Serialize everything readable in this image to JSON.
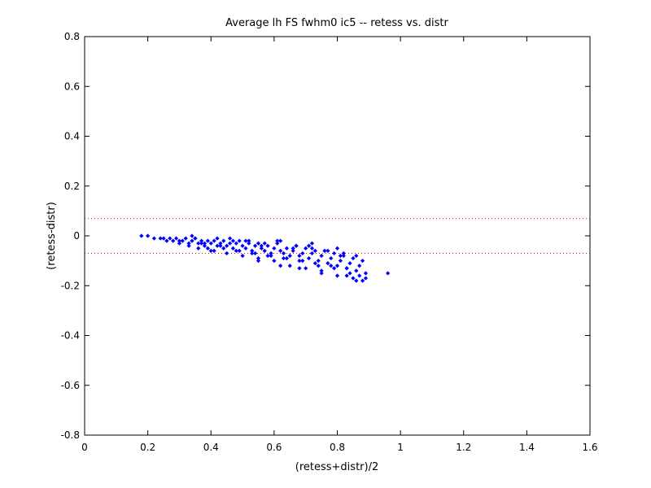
{
  "chart_data": {
    "type": "scatter",
    "title": "Average lh FS fwhm0 ic5 -- retess vs. distr",
    "xlabel": "(retess+distr)/2",
    "ylabel": "(retess-distr)",
    "xlim": [
      0,
      1.6
    ],
    "ylim": [
      -0.8,
      0.8
    ],
    "xticks": [
      "0",
      "0.2",
      "0.4",
      "0.6",
      "0.8",
      "1",
      "1.2",
      "1.4",
      "1.6"
    ],
    "yticks": [
      "0.8",
      "0.6",
      "0.4",
      "0.2",
      "0",
      "-0.2",
      "-0.4",
      "-0.6",
      "-0.8"
    ],
    "xtick_values": [
      0,
      0.2,
      0.4,
      0.6,
      0.8,
      1.0,
      1.2,
      1.4,
      1.6
    ],
    "ytick_values": [
      0.8,
      0.6,
      0.4,
      0.2,
      0,
      -0.2,
      -0.4,
      -0.6,
      -0.8
    ],
    "grid": false,
    "reference_lines": [
      0.07,
      -0.07
    ],
    "colors": {
      "points": "#0000ff",
      "reference_lines": "#ff0000",
      "axes": "#000000"
    },
    "series": [
      {
        "marker": "dot",
        "x": [
          0.18,
          0.2,
          0.22,
          0.24,
          0.25,
          0.26,
          0.27,
          0.28,
          0.29,
          0.3,
          0.31,
          0.32,
          0.33,
          0.34,
          0.35,
          0.36,
          0.37,
          0.38,
          0.39,
          0.4,
          0.41,
          0.42,
          0.43,
          0.44,
          0.45,
          0.46,
          0.47,
          0.48,
          0.49,
          0.5,
          0.51,
          0.52,
          0.53,
          0.54,
          0.55,
          0.56,
          0.57,
          0.58,
          0.59,
          0.6,
          0.61,
          0.62,
          0.63,
          0.64,
          0.65,
          0.66,
          0.67,
          0.68,
          0.69,
          0.7,
          0.71,
          0.72,
          0.73,
          0.74,
          0.75,
          0.76,
          0.77,
          0.78,
          0.79,
          0.8,
          0.81,
          0.82,
          0.83,
          0.84,
          0.85,
          0.86,
          0.87,
          0.88,
          0.89,
          0.96,
          0.3,
          0.33,
          0.35,
          0.36,
          0.38,
          0.4,
          0.42,
          0.44,
          0.45,
          0.47,
          0.48,
          0.5,
          0.52,
          0.53,
          0.55,
          0.57,
          0.58,
          0.6,
          0.62,
          0.63,
          0.65,
          0.67,
          0.68,
          0.7,
          0.72,
          0.73,
          0.75,
          0.77,
          0.78,
          0.8,
          0.82,
          0.83,
          0.85,
          0.86,
          0.88,
          0.34,
          0.37,
          0.39,
          0.43,
          0.46,
          0.49,
          0.51,
          0.54,
          0.56,
          0.59,
          0.61,
          0.64,
          0.66,
          0.69,
          0.71,
          0.74,
          0.76,
          0.79,
          0.81,
          0.84,
          0.87,
          0.41,
          0.55,
          0.62,
          0.68,
          0.72,
          0.75,
          0.8,
          0.83,
          0.86,
          0.89
        ],
        "y": [
          0.0,
          0.0,
          -0.01,
          -0.01,
          -0.01,
          -0.02,
          -0.01,
          -0.02,
          -0.01,
          -0.02,
          -0.02,
          -0.01,
          -0.03,
          -0.02,
          -0.01,
          -0.03,
          -0.02,
          -0.04,
          -0.02,
          -0.03,
          -0.02,
          -0.04,
          -0.03,
          -0.02,
          -0.04,
          -0.03,
          -0.05,
          -0.03,
          -0.02,
          -0.04,
          -0.05,
          -0.03,
          -0.06,
          -0.04,
          -0.03,
          -0.05,
          -0.06,
          -0.04,
          -0.07,
          -0.05,
          -0.03,
          -0.06,
          -0.07,
          -0.05,
          -0.08,
          -0.06,
          -0.04,
          -0.08,
          -0.07,
          -0.05,
          -0.09,
          -0.07,
          -0.06,
          -0.1,
          -0.08,
          -0.06,
          -0.11,
          -0.09,
          -0.07,
          -0.12,
          -0.1,
          -0.08,
          -0.13,
          -0.11,
          -0.09,
          -0.14,
          -0.12,
          -0.1,
          -0.15,
          -0.15,
          -0.03,
          -0.04,
          -0.01,
          -0.05,
          -0.03,
          -0.06,
          -0.01,
          -0.05,
          -0.07,
          -0.02,
          -0.06,
          -0.08,
          -0.02,
          -0.07,
          -0.09,
          -0.03,
          -0.08,
          -0.1,
          -0.02,
          -0.09,
          -0.12,
          -0.04,
          -0.1,
          -0.13,
          -0.05,
          -0.11,
          -0.14,
          -0.06,
          -0.12,
          -0.16,
          -0.07,
          -0.13,
          -0.17,
          -0.08,
          -0.18,
          -0.0,
          -0.03,
          -0.05,
          -0.04,
          -0.01,
          -0.06,
          -0.02,
          -0.07,
          -0.04,
          -0.08,
          -0.02,
          -0.09,
          -0.05,
          -0.1,
          -0.04,
          -0.12,
          -0.06,
          -0.13,
          -0.08,
          -0.15,
          -0.16,
          -0.06,
          -0.1,
          -0.12,
          -0.13,
          -0.03,
          -0.15,
          -0.05,
          -0.16,
          -0.18,
          -0.17
        ]
      }
    ]
  }
}
